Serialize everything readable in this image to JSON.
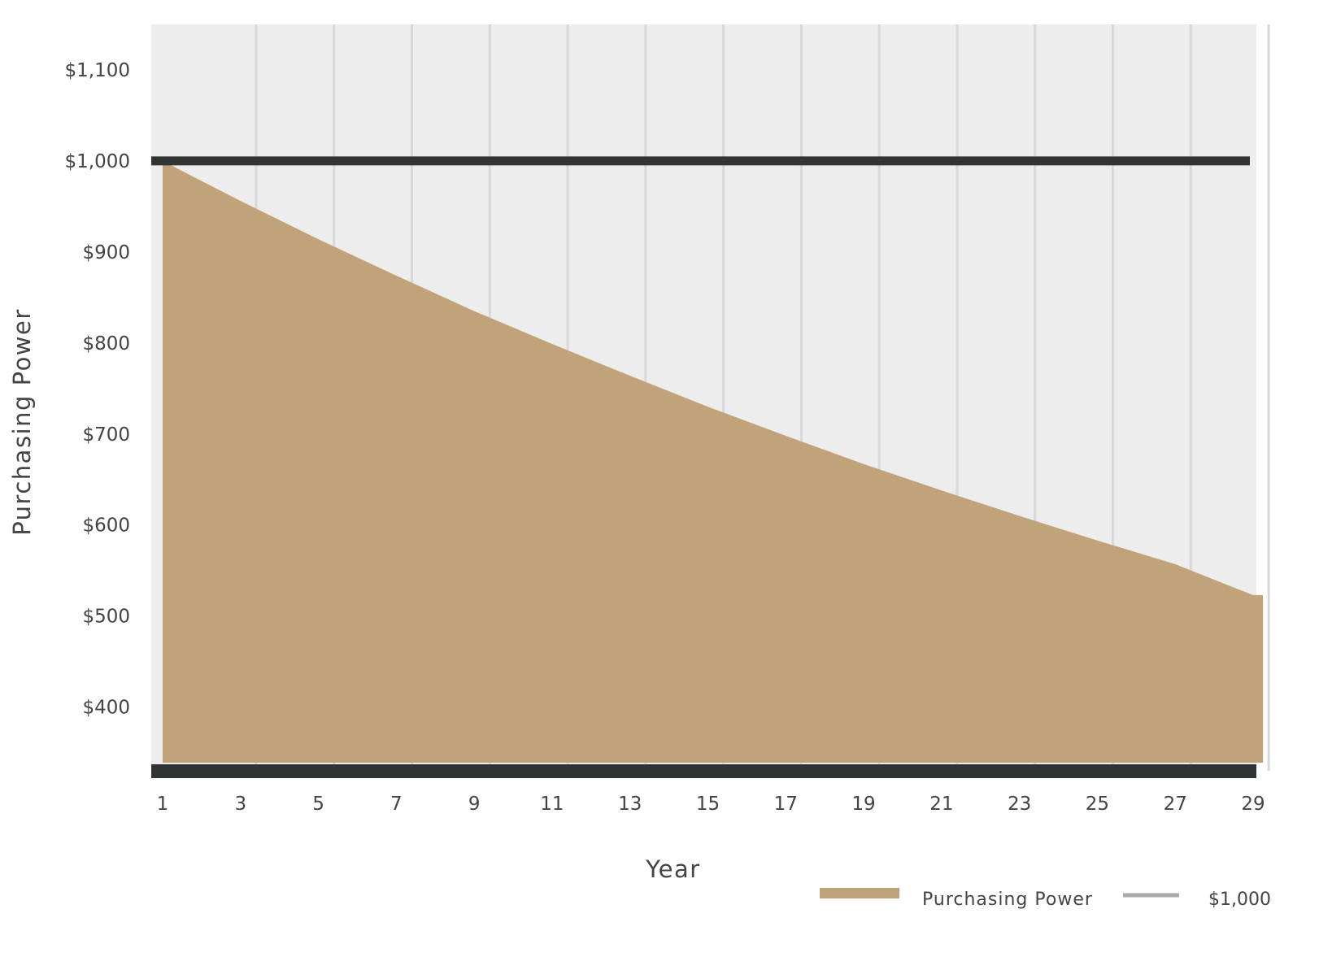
{
  "chart_data": {
    "type": "area",
    "xlabel": "Year",
    "ylabel": "Purchasing Power",
    "x_ticks": [
      1,
      3,
      5,
      7,
      9,
      11,
      13,
      15,
      17,
      19,
      21,
      23,
      25,
      27,
      29
    ],
    "y_ticks": [
      {
        "value": 400,
        "label": "$400"
      },
      {
        "value": 500,
        "label": "$500"
      },
      {
        "value": 600,
        "label": "$600"
      },
      {
        "value": 700,
        "label": "$700"
      },
      {
        "value": 800,
        "label": "$800"
      },
      {
        "value": 900,
        "label": "$900"
      },
      {
        "value": 1000,
        "label": "$1,000"
      },
      {
        "value": 1100,
        "label": "$1,100"
      }
    ],
    "xlim": [
      1,
      29
    ],
    "ylim": [
      330,
      1150
    ],
    "grid": "vertical",
    "legend_position": "bottom-right",
    "series": [
      {
        "name": "Purchasing Power",
        "type": "area",
        "color": "#C0A27B",
        "x": [
          1,
          3,
          5,
          7,
          9,
          11,
          13,
          15,
          17,
          19,
          21,
          23,
          25,
          27,
          29
        ],
        "values": [
          1000,
          956,
          914,
          874,
          835,
          799,
          764,
          730,
          698,
          667,
          638,
          610,
          583,
          557,
          523
        ]
      },
      {
        "name": "$1,000",
        "type": "line",
        "color": "#333333",
        "x": [
          1,
          29
        ],
        "values": [
          1000,
          1000
        ]
      }
    ]
  },
  "colors": {
    "plot_background": "#EDEDED",
    "grid": "#D8D8D8",
    "axis_line": "#2F3333",
    "text": "#444444"
  }
}
